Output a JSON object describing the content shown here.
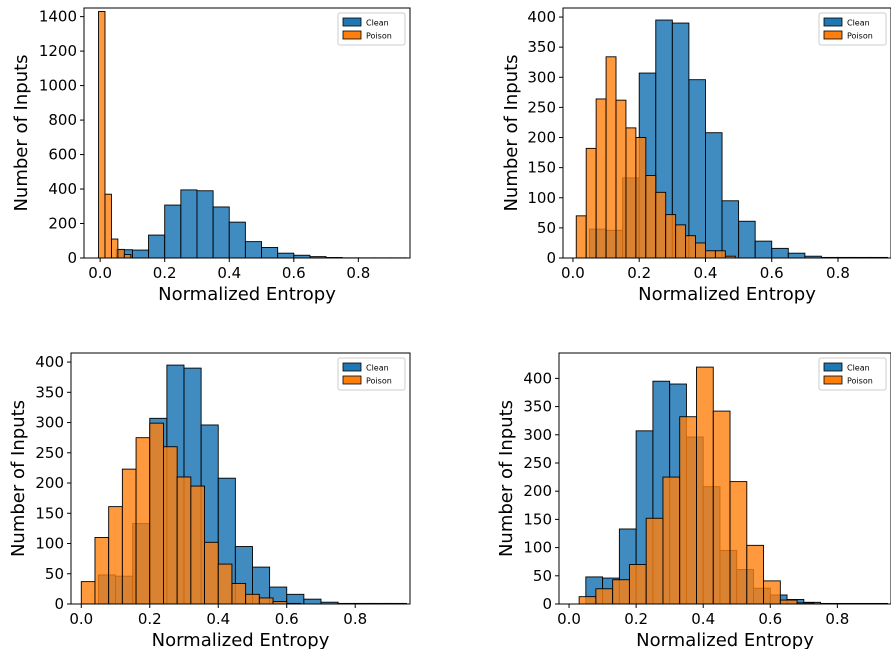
{
  "colors": {
    "clean": "#1f77b4",
    "poison": "#ff7f0e",
    "edge": "#000000"
  },
  "chart_data": [
    {
      "type": "bar",
      "xlabel": "Normalized Entropy",
      "ylabel": "Number of Inputs",
      "xlim": [
        -0.05,
        0.96
      ],
      "ylim": [
        0,
        1450
      ],
      "xticks": [
        "0.0",
        "0.2",
        "0.4",
        "0.6",
        "0.8"
      ],
      "yticks": [
        "0",
        "200",
        "400",
        "600",
        "800",
        "1000",
        "1200",
        "1400"
      ],
      "legend_position": "top-right",
      "series": [
        {
          "name": "Clean",
          "bins": [
            0.05,
            0.1,
            0.15,
            0.2,
            0.25,
            0.3,
            0.35,
            0.4,
            0.45,
            0.5,
            0.55,
            0.6,
            0.65,
            0.7,
            0.75,
            0.8,
            0.85,
            0.9,
            0.95
          ],
          "values": [
            48,
            46,
            133,
            307,
            395,
            390,
            296,
            208,
            95,
            61,
            28,
            16,
            8,
            3,
            1,
            1,
            1,
            1
          ]
        },
        {
          "name": "Poison",
          "bins": [
            -0.005,
            0.015,
            0.035,
            0.055,
            0.075,
            0.095
          ],
          "values": [
            1430,
            370,
            110,
            50,
            20
          ]
        }
      ]
    },
    {
      "type": "bar",
      "xlabel": "Normalized Entropy",
      "ylabel": "Number of Inputs",
      "xlim": [
        -0.03,
        0.96
      ],
      "ylim": [
        0,
        415
      ],
      "xticks": [
        "0.0",
        "0.2",
        "0.4",
        "0.6",
        "0.8"
      ],
      "yticks": [
        "0",
        "50",
        "100",
        "150",
        "200",
        "250",
        "300",
        "350",
        "400"
      ],
      "legend_position": "top-right",
      "series": [
        {
          "name": "Clean",
          "bins": [
            0.05,
            0.1,
            0.15,
            0.2,
            0.25,
            0.3,
            0.35,
            0.4,
            0.45,
            0.5,
            0.55,
            0.6,
            0.65,
            0.7,
            0.75,
            0.8,
            0.85,
            0.9,
            0.95
          ],
          "values": [
            48,
            46,
            133,
            307,
            395,
            390,
            296,
            208,
            95,
            61,
            28,
            16,
            8,
            3,
            1,
            1,
            1,
            1
          ]
        },
        {
          "name": "Poison",
          "bins": [
            0.01,
            0.04,
            0.07,
            0.1,
            0.13,
            0.16,
            0.19,
            0.22,
            0.25,
            0.28,
            0.31,
            0.34,
            0.37,
            0.4,
            0.43,
            0.46,
            0.49
          ],
          "values": [
            70,
            182,
            264,
            334,
            262,
            216,
            200,
            137,
            109,
            72,
            55,
            37,
            25,
            12,
            12,
            3
          ]
        }
      ]
    },
    {
      "type": "bar",
      "xlabel": "Normalized Entropy",
      "ylabel": "Number of Inputs",
      "xlim": [
        -0.03,
        0.96
      ],
      "ylim": [
        0,
        415
      ],
      "xticks": [
        "0.0",
        "0.2",
        "0.4",
        "0.6",
        "0.8"
      ],
      "yticks": [
        "0",
        "50",
        "100",
        "150",
        "200",
        "250",
        "300",
        "350",
        "400"
      ],
      "legend_position": "top-right",
      "series": [
        {
          "name": "Clean",
          "bins": [
            0.05,
            0.1,
            0.15,
            0.2,
            0.25,
            0.3,
            0.35,
            0.4,
            0.45,
            0.5,
            0.55,
            0.6,
            0.65,
            0.7,
            0.75,
            0.8,
            0.85,
            0.9,
            0.95
          ],
          "values": [
            48,
            46,
            133,
            307,
            395,
            390,
            296,
            208,
            95,
            61,
            28,
            16,
            8,
            3,
            1,
            1,
            1,
            1
          ]
        },
        {
          "name": "Poison",
          "bins": [
            0.0,
            0.04,
            0.08,
            0.12,
            0.16,
            0.2,
            0.24,
            0.28,
            0.32,
            0.36,
            0.4,
            0.44,
            0.48,
            0.52,
            0.56,
            0.6,
            0.64
          ],
          "values": [
            37,
            110,
            161,
            223,
            275,
            299,
            260,
            210,
            195,
            102,
            66,
            34,
            16,
            10,
            4,
            1
          ]
        }
      ]
    },
    {
      "type": "bar",
      "xlabel": "Normalized Entropy",
      "ylabel": "Number of Inputs",
      "xlim": [
        -0.03,
        0.96
      ],
      "ylim": [
        0,
        445
      ],
      "xticks": [
        "0.0",
        "0.2",
        "0.4",
        "0.6",
        "0.8"
      ],
      "yticks": [
        "0",
        "50",
        "100",
        "150",
        "200",
        "250",
        "300",
        "350",
        "400"
      ],
      "legend_position": "top-right",
      "series": [
        {
          "name": "Clean",
          "bins": [
            0.05,
            0.1,
            0.15,
            0.2,
            0.25,
            0.3,
            0.35,
            0.4,
            0.45,
            0.5,
            0.55,
            0.6,
            0.65,
            0.7,
            0.75,
            0.8,
            0.85,
            0.9,
            0.95
          ],
          "values": [
            48,
            46,
            133,
            307,
            395,
            390,
            296,
            208,
            95,
            61,
            28,
            16,
            8,
            3,
            1,
            1,
            1,
            1
          ]
        },
        {
          "name": "Poison",
          "bins": [
            0.03,
            0.08,
            0.13,
            0.18,
            0.23,
            0.28,
            0.33,
            0.38,
            0.43,
            0.48,
            0.53,
            0.58,
            0.63,
            0.68,
            0.73
          ],
          "values": [
            13,
            27,
            43,
            70,
            152,
            225,
            332,
            420,
            342,
            217,
            104,
            41,
            7,
            2
          ]
        }
      ]
    }
  ]
}
